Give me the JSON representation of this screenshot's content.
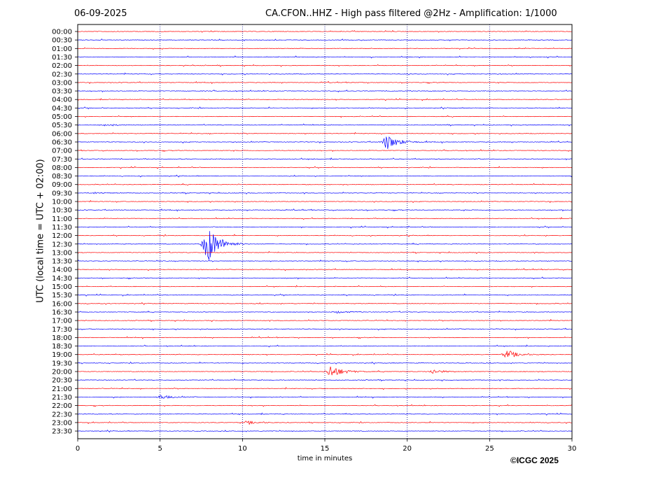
{
  "header": {
    "date": "06-09-2025",
    "title": "CA.CFON..HHZ - High pass filtered @2Hz - Amplification: 1/1000"
  },
  "copyright": "©ICGC 2025",
  "colors": {
    "trace_a": "#ff0000",
    "trace_b": "#0000ff",
    "frame": "#000000",
    "grid": "#00008b"
  },
  "chart_data": {
    "type": "line",
    "xlabel": "time in minutes",
    "ylabel": "UTC (local time = UTC + 02:00)",
    "xlim": [
      0,
      30
    ],
    "x_ticks": [
      0,
      5,
      10,
      15,
      20,
      25,
      30
    ],
    "x_tick_labels": [
      "0",
      "5",
      "10",
      "15",
      "20",
      "25",
      "30"
    ],
    "vertical_gridlines_at": [
      5,
      10,
      15,
      20,
      25
    ],
    "grid_style": "dotted",
    "rows": [
      "00:00",
      "00:30",
      "01:00",
      "01:30",
      "02:00",
      "02:30",
      "03:00",
      "03:30",
      "04:00",
      "04:30",
      "05:00",
      "05:30",
      "06:00",
      "06:30",
      "07:00",
      "07:30",
      "08:00",
      "08:30",
      "09:00",
      "09:30",
      "10:00",
      "10:30",
      "11:00",
      "11:30",
      "12:00",
      "12:30",
      "13:00",
      "13:30",
      "14:00",
      "14:30",
      "15:00",
      "15:30",
      "16:00",
      "16:30",
      "17:00",
      "17:30",
      "18:00",
      "18:30",
      "19:00",
      "19:30",
      "20:00",
      "20:30",
      "21:00",
      "21:30",
      "22:00",
      "22:30",
      "23:00",
      "23:30"
    ],
    "row_colors": "alternating red (even rows) / blue (odd rows)",
    "events": [
      {
        "row": "05:30",
        "minute": 1.6,
        "amplitude": 0.15
      },
      {
        "row": "06:30",
        "minute": 18.7,
        "amplitude": 1.2
      },
      {
        "row": "09:30",
        "minute": 1.0,
        "amplitude": 0.12
      },
      {
        "row": "12:30",
        "minute": 7.8,
        "amplitude": 3.2
      },
      {
        "row": "16:30",
        "minute": 15.7,
        "amplitude": 0.15
      },
      {
        "row": "19:00",
        "minute": 26.0,
        "amplitude": 0.6
      },
      {
        "row": "20:00",
        "minute": 15.3,
        "amplitude": 1.0
      },
      {
        "row": "20:00",
        "minute": 21.5,
        "amplitude": 0.3
      },
      {
        "row": "21:30",
        "minute": 5.0,
        "amplitude": 0.3
      },
      {
        "row": "23:00",
        "minute": 10.3,
        "amplitude": 0.2
      }
    ]
  }
}
